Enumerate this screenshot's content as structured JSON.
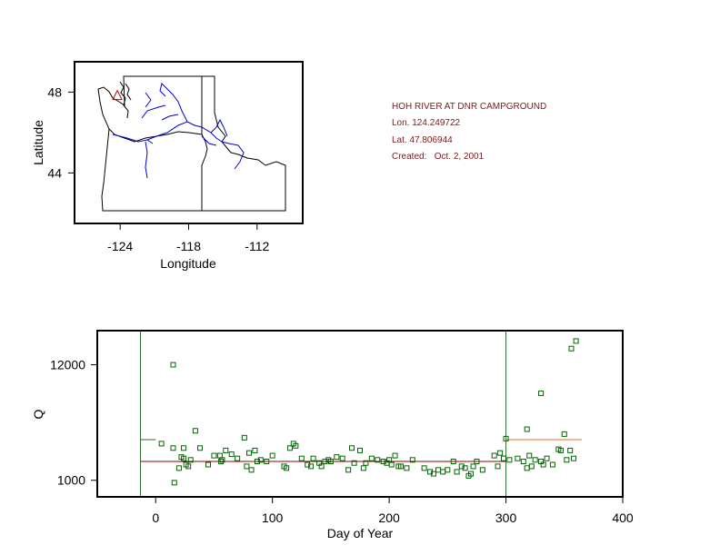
{
  "site": {
    "name": "HOH RIVER AT DNR CAMPGROUND",
    "lon_text": "Lon. 124.249722",
    "lat_text": "Lat. 47.806944",
    "created_label": "Created:",
    "created_date": "Oct. 2, 2001"
  },
  "colors": {
    "frame": "#000000",
    "river": "#0000cc",
    "points": "#006400",
    "median_line": "#8b0000",
    "late_median_line": "#e07020",
    "vline": "#2f6b2f",
    "site_marker": "#cc0000"
  },
  "chart_data": [
    {
      "type": "map",
      "xlabel": "Longitude",
      "ylabel": "Latitude",
      "xlim": [
        -128,
        -108
      ],
      "ylim": [
        41.5,
        49.5
      ],
      "xticks": [
        -124,
        -118,
        -112
      ],
      "yticks": [
        44,
        48
      ],
      "site_marker": {
        "lon": -124.25,
        "lat": 47.81
      }
    },
    {
      "type": "scatter",
      "xlabel": "Day of Year",
      "ylabel": "Q",
      "xlim": [
        -50,
        400
      ],
      "ylim": [
        700,
        25000
      ],
      "y_scale": "log",
      "xticks": [
        0,
        100,
        200,
        300,
        400
      ],
      "yticks": [
        1000,
        12000
      ],
      "vlines": [
        -13,
        300
      ],
      "reference_lines": [
        {
          "x_start": -13,
          "x_end": 300,
          "y": 1500
        },
        {
          "x_start": 300,
          "x_end": 365,
          "y": 2400
        },
        {
          "x_start": -13,
          "x_end": 0,
          "y": 2400
        }
      ],
      "points": [
        [
          5,
          2200
        ],
        [
          15,
          12000
        ],
        [
          15,
          2000
        ],
        [
          16,
          950
        ],
        [
          20,
          1300
        ],
        [
          22,
          1650
        ],
        [
          24,
          1600
        ],
        [
          24,
          2000
        ],
        [
          26,
          1400
        ],
        [
          28,
          1350
        ],
        [
          30,
          1550
        ],
        [
          34,
          2900
        ],
        [
          38,
          2000
        ],
        [
          45,
          1400
        ],
        [
          50,
          1700
        ],
        [
          55,
          1700
        ],
        [
          56,
          1500
        ],
        [
          57,
          1550
        ],
        [
          60,
          1900
        ],
        [
          65,
          1750
        ],
        [
          70,
          1600
        ],
        [
          76,
          2500
        ],
        [
          78,
          1350
        ],
        [
          80,
          1800
        ],
        [
          82,
          1250
        ],
        [
          85,
          1900
        ],
        [
          87,
          1500
        ],
        [
          90,
          1550
        ],
        [
          95,
          1500
        ],
        [
          100,
          1700
        ],
        [
          110,
          1350
        ],
        [
          112,
          1300
        ],
        [
          115,
          2000
        ],
        [
          118,
          2200
        ],
        [
          120,
          2100
        ],
        [
          125,
          1600
        ],
        [
          130,
          1400
        ],
        [
          133,
          1350
        ],
        [
          135,
          1600
        ],
        [
          140,
          1450
        ],
        [
          142,
          1350
        ],
        [
          145,
          1500
        ],
        [
          148,
          1550
        ],
        [
          150,
          1500
        ],
        [
          155,
          1650
        ],
        [
          160,
          1600
        ],
        [
          165,
          1250
        ],
        [
          168,
          2000
        ],
        [
          170,
          1450
        ],
        [
          175,
          1900
        ],
        [
          178,
          1300
        ],
        [
          180,
          1450
        ],
        [
          185,
          1600
        ],
        [
          190,
          1550
        ],
        [
          195,
          1500
        ],
        [
          198,
          1450
        ],
        [
          200,
          1550
        ],
        [
          202,
          1400
        ],
        [
          205,
          1700
        ],
        [
          208,
          1350
        ],
        [
          210,
          1350
        ],
        [
          215,
          1300
        ],
        [
          220,
          1550
        ],
        [
          230,
          1300
        ],
        [
          235,
          1200
        ],
        [
          238,
          1150
        ],
        [
          242,
          1250
        ],
        [
          246,
          1200
        ],
        [
          250,
          1250
        ],
        [
          255,
          1500
        ],
        [
          258,
          1200
        ],
        [
          262,
          1350
        ],
        [
          265,
          1300
        ],
        [
          268,
          1100
        ],
        [
          270,
          1150
        ],
        [
          272,
          1350
        ],
        [
          275,
          1500
        ],
        [
          280,
          1250
        ],
        [
          290,
          1700
        ],
        [
          293,
          1350
        ],
        [
          295,
          1800
        ],
        [
          298,
          1600
        ],
        [
          300,
          2450
        ],
        [
          303,
          1550
        ],
        [
          310,
          1600
        ],
        [
          315,
          1500
        ],
        [
          320,
          1700
        ],
        [
          325,
          1550
        ],
        [
          330,
          1500
        ],
        [
          332,
          1400
        ],
        [
          335,
          1600
        ],
        [
          340,
          1400
        ],
        [
          345,
          1950
        ],
        [
          347,
          1900
        ],
        [
          350,
          2700
        ],
        [
          352,
          1550
        ],
        [
          355,
          1900
        ],
        [
          358,
          1600
        ],
        [
          318,
          1300
        ],
        [
          322,
          1350
        ],
        [
          318,
          3000
        ],
        [
          330,
          6500
        ],
        [
          356,
          17000
        ],
        [
          360,
          20000
        ]
      ]
    }
  ]
}
